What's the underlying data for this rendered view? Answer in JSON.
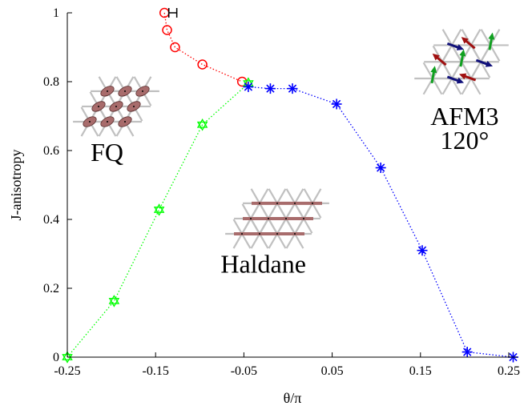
{
  "chart_data": {
    "type": "scatter",
    "xlabel": "θ/π",
    "ylabel": "J-anisotropy",
    "xlim": [
      -0.25,
      0.26
    ],
    "ylim": [
      0,
      1
    ],
    "x_ticks": [
      "-0.25",
      "-0.15",
      "-0.05",
      "0.05",
      "0.15",
      "0.25"
    ],
    "x_tick_values": [
      -0.25,
      -0.15,
      -0.05,
      0.05,
      0.15,
      0.25
    ],
    "y_ticks": [
      "0",
      "0.2",
      "0.4",
      "0.6",
      "0.8",
      "1"
    ],
    "y_tick_values": [
      0,
      0.2,
      0.4,
      0.6,
      0.8,
      1
    ],
    "series": [
      {
        "marker": "circle",
        "color": "#ff0000",
        "line": "dotted",
        "points": [
          [
            -0.14,
            1.0
          ],
          [
            -0.137,
            0.95
          ],
          [
            -0.128,
            0.9
          ],
          [
            -0.097,
            0.85
          ],
          [
            -0.052,
            0.8
          ]
        ]
      },
      {
        "marker": "hexagram",
        "color": "#00ff00",
        "line": "dotted",
        "points": [
          [
            -0.25,
            0.0
          ],
          [
            -0.197,
            0.163
          ],
          [
            -0.146,
            0.428
          ],
          [
            -0.097,
            0.675
          ],
          [
            -0.045,
            0.795
          ]
        ]
      },
      {
        "marker": "asterisk",
        "color": "#0000ff",
        "line": "dotted",
        "points": [
          [
            -0.045,
            0.785
          ],
          [
            -0.02,
            0.78
          ],
          [
            0.005,
            0.78
          ],
          [
            0.055,
            0.735
          ],
          [
            0.105,
            0.55
          ],
          [
            0.152,
            0.31
          ],
          [
            0.203,
            0.015
          ],
          [
            0.255,
            0.0
          ]
        ]
      }
    ],
    "error_bar": {
      "x": -0.14,
      "y": 1.0,
      "xerr_plus": 0.014
    },
    "annotations": [
      {
        "text": "FQ",
        "x": -0.205,
        "y": 0.57
      },
      {
        "text": "Haldane",
        "x": -0.028,
        "y": 0.245
      },
      {
        "text": "AFM3",
        "x": 0.2,
        "y": 0.675
      },
      {
        "text": "120°",
        "x": 0.2,
        "y": 0.605
      }
    ],
    "grid": false,
    "legend": "none",
    "colors": {
      "red": "#ff0000",
      "green": "#00ff00",
      "blue": "#0000ff",
      "bond": "#a86c6c",
      "lattice": "#c0c0c0",
      "arrow_red": "#a01010",
      "arrow_blue": "#10107a",
      "arrow_green": "#10a020"
    }
  }
}
